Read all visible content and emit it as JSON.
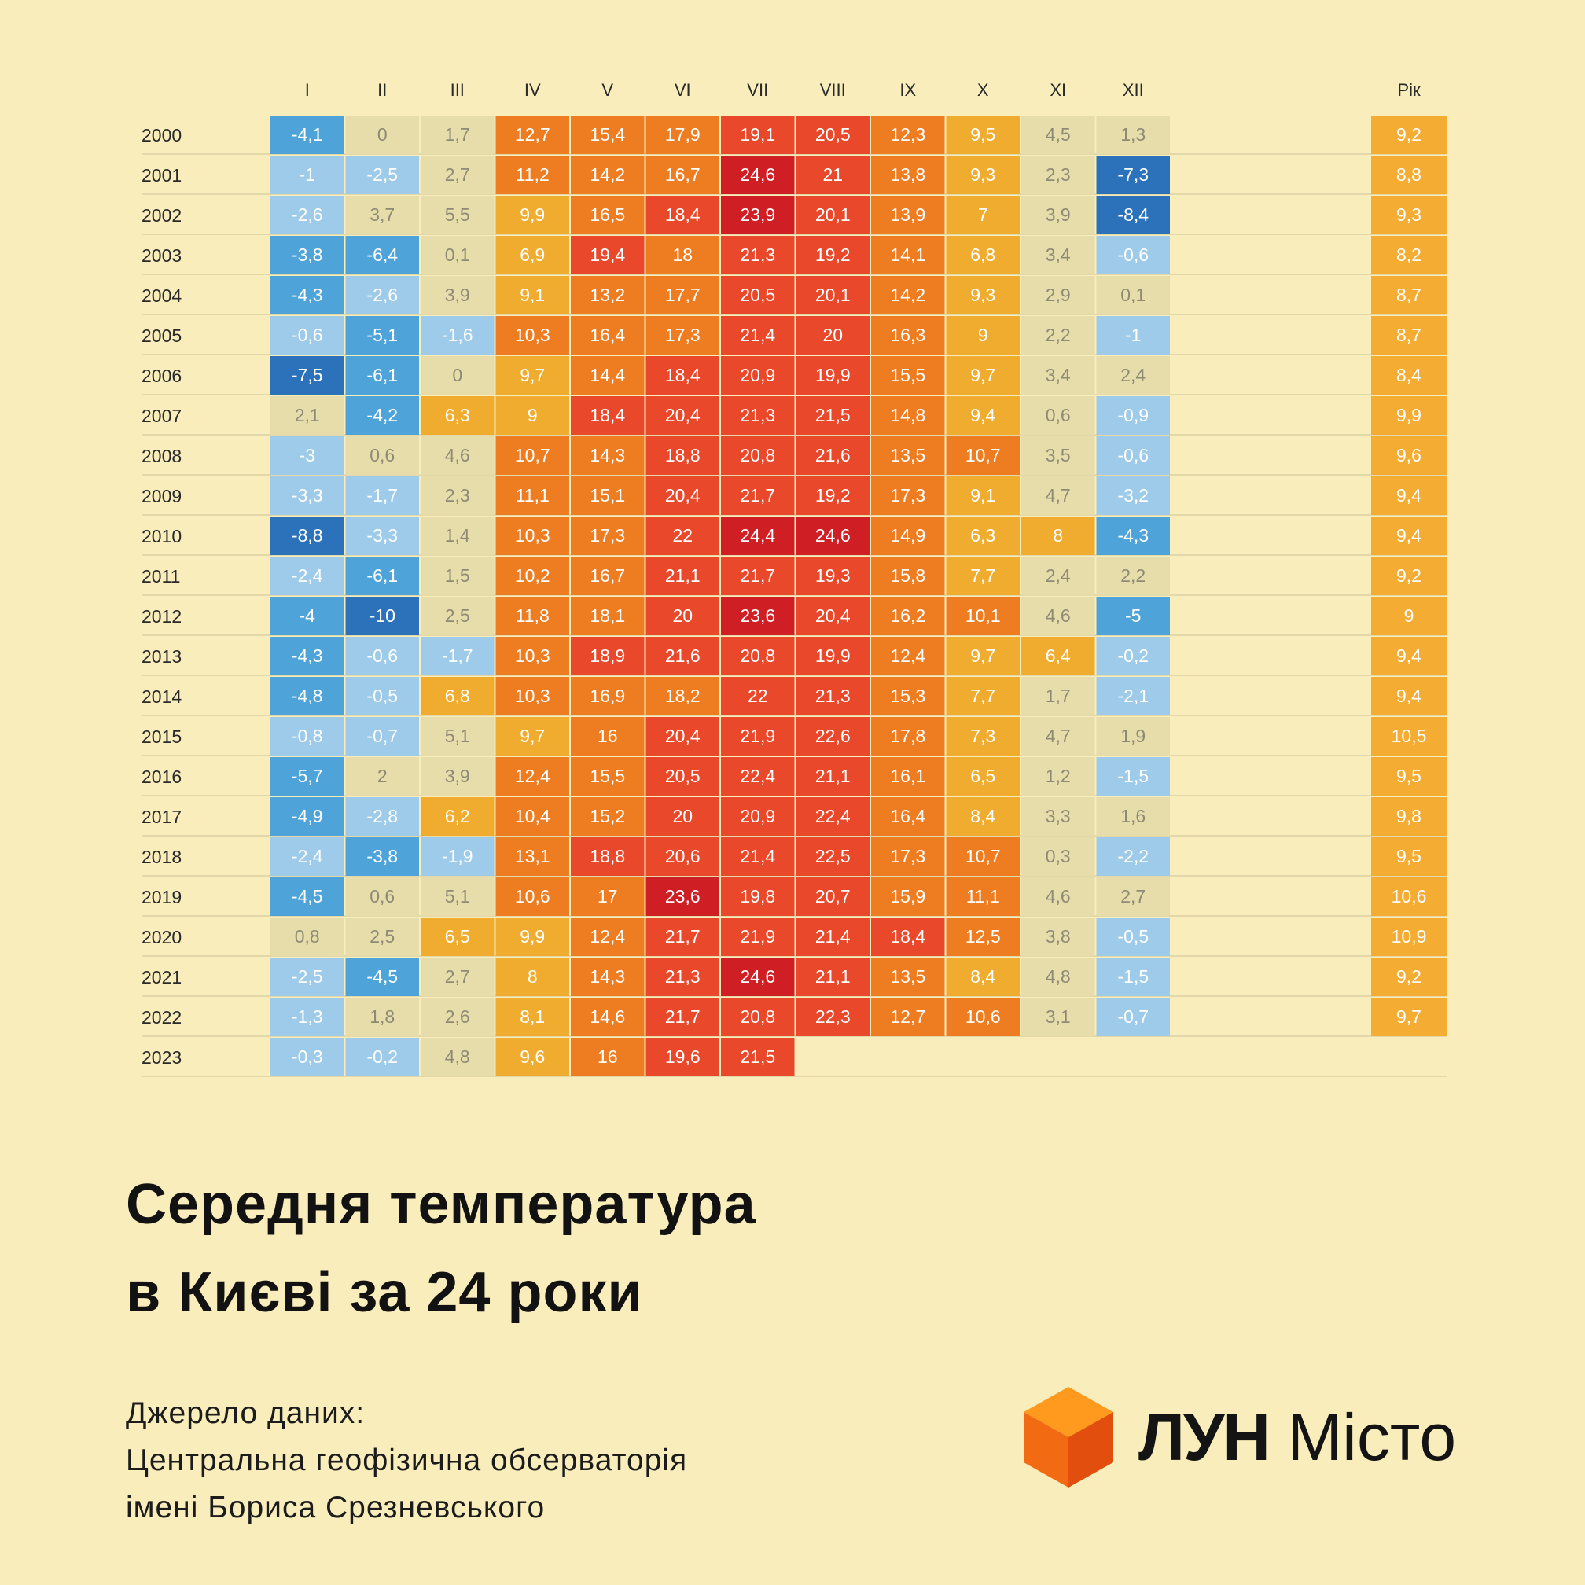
{
  "chart_data": {
    "type": "heatmap",
    "columns": [
      "I",
      "II",
      "III",
      "IV",
      "V",
      "VI",
      "VII",
      "VIII",
      "IX",
      "X",
      "XI",
      "XII"
    ],
    "annual_label": "Рік",
    "rows": [
      {
        "year": "2000",
        "values": [
          "-4,1",
          "0",
          "1,7",
          "12,7",
          "15,4",
          "17,9",
          "19,1",
          "20,5",
          "12,3",
          "9,5",
          "4,5",
          "1,3"
        ],
        "annual": "9,2"
      },
      {
        "year": "2001",
        "values": [
          "-1",
          "-2,5",
          "2,7",
          "11,2",
          "14,2",
          "16,7",
          "24,6",
          "21",
          "13,8",
          "9,3",
          "2,3",
          "-7,3"
        ],
        "annual": "8,8"
      },
      {
        "year": "2002",
        "values": [
          "-2,6",
          "3,7",
          "5,5",
          "9,9",
          "16,5",
          "18,4",
          "23,9",
          "20,1",
          "13,9",
          "7",
          "3,9",
          "-8,4"
        ],
        "annual": "9,3"
      },
      {
        "year": "2003",
        "values": [
          "-3,8",
          "-6,4",
          "0,1",
          "6,9",
          "19,4",
          "18",
          "21,3",
          "19,2",
          "14,1",
          "6,8",
          "3,4",
          "-0,6"
        ],
        "annual": "8,2"
      },
      {
        "year": "2004",
        "values": [
          "-4,3",
          "-2,6",
          "3,9",
          "9,1",
          "13,2",
          "17,7",
          "20,5",
          "20,1",
          "14,2",
          "9,3",
          "2,9",
          "0,1"
        ],
        "annual": "8,7"
      },
      {
        "year": "2005",
        "values": [
          "-0,6",
          "-5,1",
          "-1,6",
          "10,3",
          "16,4",
          "17,3",
          "21,4",
          "20",
          "16,3",
          "9",
          "2,2",
          "-1"
        ],
        "annual": "8,7"
      },
      {
        "year": "2006",
        "values": [
          "-7,5",
          "-6,1",
          "0",
          "9,7",
          "14,4",
          "18,4",
          "20,9",
          "19,9",
          "15,5",
          "9,7",
          "3,4",
          "2,4"
        ],
        "annual": "8,4"
      },
      {
        "year": "2007",
        "values": [
          "2,1",
          "-4,2",
          "6,3",
          "9",
          "18,4",
          "20,4",
          "21,3",
          "21,5",
          "14,8",
          "9,4",
          "0,6",
          "-0,9"
        ],
        "annual": "9,9"
      },
      {
        "year": "2008",
        "values": [
          "-3",
          "0,6",
          "4,6",
          "10,7",
          "14,3",
          "18,8",
          "20,8",
          "21,6",
          "13,5",
          "10,7",
          "3,5",
          "-0,6"
        ],
        "annual": "9,6"
      },
      {
        "year": "2009",
        "values": [
          "-3,3",
          "-1,7",
          "2,3",
          "11,1",
          "15,1",
          "20,4",
          "21,7",
          "19,2",
          "17,3",
          "9,1",
          "4,7",
          "-3,2"
        ],
        "annual": "9,4"
      },
      {
        "year": "2010",
        "values": [
          "-8,8",
          "-3,3",
          "1,4",
          "10,3",
          "17,3",
          "22",
          "24,4",
          "24,6",
          "14,9",
          "6,3",
          "8",
          "-4,3"
        ],
        "annual": "9,4"
      },
      {
        "year": "2011",
        "values": [
          "-2,4",
          "-6,1",
          "1,5",
          "10,2",
          "16,7",
          "21,1",
          "21,7",
          "19,3",
          "15,8",
          "7,7",
          "2,4",
          "2,2"
        ],
        "annual": "9,2"
      },
      {
        "year": "2012",
        "values": [
          "-4",
          "-10",
          "2,5",
          "11,8",
          "18,1",
          "20",
          "23,6",
          "20,4",
          "16,2",
          "10,1",
          "4,6",
          "-5"
        ],
        "annual": "9"
      },
      {
        "year": "2013",
        "values": [
          "-4,3",
          "-0,6",
          "-1,7",
          "10,3",
          "18,9",
          "21,6",
          "20,8",
          "19,9",
          "12,4",
          "9,7",
          "6,4",
          "-0,2"
        ],
        "annual": "9,4"
      },
      {
        "year": "2014",
        "values": [
          "-4,8",
          "-0,5",
          "6,8",
          "10,3",
          "16,9",
          "18,2",
          "22",
          "21,3",
          "15,3",
          "7,7",
          "1,7",
          "-2,1"
        ],
        "annual": "9,4"
      },
      {
        "year": "2015",
        "values": [
          "-0,8",
          "-0,7",
          "5,1",
          "9,7",
          "16",
          "20,4",
          "21,9",
          "22,6",
          "17,8",
          "7,3",
          "4,7",
          "1,9"
        ],
        "annual": "10,5"
      },
      {
        "year": "2016",
        "values": [
          "-5,7",
          "2",
          "3,9",
          "12,4",
          "15,5",
          "20,5",
          "22,4",
          "21,1",
          "16,1",
          "6,5",
          "1,2",
          "-1,5"
        ],
        "annual": "9,5"
      },
      {
        "year": "2017",
        "values": [
          "-4,9",
          "-2,8",
          "6,2",
          "10,4",
          "15,2",
          "20",
          "20,9",
          "22,4",
          "16,4",
          "8,4",
          "3,3",
          "1,6"
        ],
        "annual": "9,8"
      },
      {
        "year": "2018",
        "values": [
          "-2,4",
          "-3,8",
          "-1,9",
          "13,1",
          "18,8",
          "20,6",
          "21,4",
          "22,5",
          "17,3",
          "10,7",
          "0,3",
          "-2,2"
        ],
        "annual": "9,5"
      },
      {
        "year": "2019",
        "values": [
          "-4,5",
          "0,6",
          "5,1",
          "10,6",
          "17",
          "23,6",
          "19,8",
          "20,7",
          "15,9",
          "11,1",
          "4,6",
          "2,7"
        ],
        "annual": "10,6"
      },
      {
        "year": "2020",
        "values": [
          "0,8",
          "2,5",
          "6,5",
          "9,9",
          "12,4",
          "21,7",
          "21,9",
          "21,4",
          "18,4",
          "12,5",
          "3,8",
          "-0,5"
        ],
        "annual": "10,9"
      },
      {
        "year": "2021",
        "values": [
          "-2,5",
          "-4,5",
          "2,7",
          "8",
          "14,3",
          "21,3",
          "24,6",
          "21,1",
          "13,5",
          "8,4",
          "4,8",
          "-1,5"
        ],
        "annual": "9,2"
      },
      {
        "year": "2022",
        "values": [
          "-1,3",
          "1,8",
          "2,6",
          "8,1",
          "14,6",
          "21,7",
          "20,8",
          "22,3",
          "12,7",
          "10,6",
          "3,1",
          "-0,7"
        ],
        "annual": "9,7"
      },
      {
        "year": "2023",
        "values": [
          "-0,3",
          "-0,2",
          "4,8",
          "9,6",
          "16",
          "19,6",
          "21,5"
        ],
        "annual": ""
      }
    ]
  },
  "colors": {
    "background": "#f8edbb",
    "deep_blue": "#2b72ba",
    "mid_blue": "#4ea3d9",
    "light_blue": "#9dcbe9",
    "neutral": "#e7ddaa",
    "amber": "#f0ac2e",
    "orange": "#ee7d22",
    "red_orange": "#e9482a",
    "red": "#cf1f24",
    "annual": "#f4ac32"
  },
  "title": [
    "Середня температура",
    "в Києві за 24 роки"
  ],
  "source": [
    "Джерело даних:",
    "Центральна геофізична обсерваторія",
    "імені Бориса Срезневського"
  ],
  "logo": {
    "icon": "orange-cube-icon",
    "brand": "ЛУН",
    "suffix": "Місто"
  }
}
